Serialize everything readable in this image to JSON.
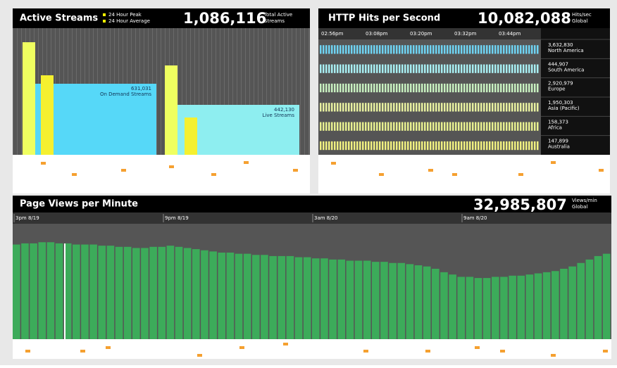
{
  "active_streams": {
    "title": "Active Streams",
    "legend": [
      "24 Hour Peak",
      "24 Hour Average"
    ],
    "total": "1,086,116",
    "total_label": [
      "Total Active",
      "Streams"
    ],
    "panels": [
      {
        "value": "631,031",
        "name": "On Demand Streams"
      },
      {
        "value": "442,130",
        "name": "Live Streams"
      }
    ]
  },
  "http_hits": {
    "title": "HTTP Hits per Second",
    "total": "10,082,088",
    "total_label": [
      "Hits/sec",
      "Global"
    ],
    "times": [
      "02:56pm",
      "03:08pm",
      "03:20pm",
      "03:32pm",
      "03:44pm"
    ],
    "regions": [
      {
        "value": "3,632,830",
        "name": "North America",
        "color": "#6fd3f2"
      },
      {
        "value": "444,907",
        "name": "South America",
        "color": "#a8eef2"
      },
      {
        "value": "2,920,979",
        "name": "Europe",
        "color": "#c8f0c0"
      },
      {
        "value": "1,950,303",
        "name": "Asia (Pacific)",
        "color": "#e8f0a0"
      },
      {
        "value": "158,373",
        "name": "Africa",
        "color": "#e8f090"
      },
      {
        "value": "147,899",
        "name": "Australia",
        "color": "#f0f080"
      }
    ]
  },
  "page_views": {
    "title": "Page Views per Minute",
    "total": "32,985,807",
    "total_label": [
      "Views/min",
      "Global"
    ],
    "times": [
      "3pm 8/19",
      "9pm 8/19",
      "3am 8/20",
      "9am 8/20"
    ],
    "color": "#3cab5a",
    "bars": [
      82,
      83,
      83,
      84,
      84,
      83,
      83,
      82,
      82,
      82,
      81,
      81,
      80,
      80,
      79,
      79,
      80,
      80,
      81,
      80,
      79,
      78,
      77,
      76,
      75,
      75,
      74,
      74,
      73,
      73,
      72,
      72,
      72,
      71,
      71,
      70,
      70,
      69,
      69,
      68,
      68,
      68,
      67,
      67,
      66,
      66,
      65,
      64,
      63,
      61,
      58,
      56,
      54,
      54,
      53,
      53,
      54,
      54,
      55,
      55,
      56,
      57,
      58,
      59,
      61,
      63,
      66,
      69,
      72,
      74
    ]
  }
}
